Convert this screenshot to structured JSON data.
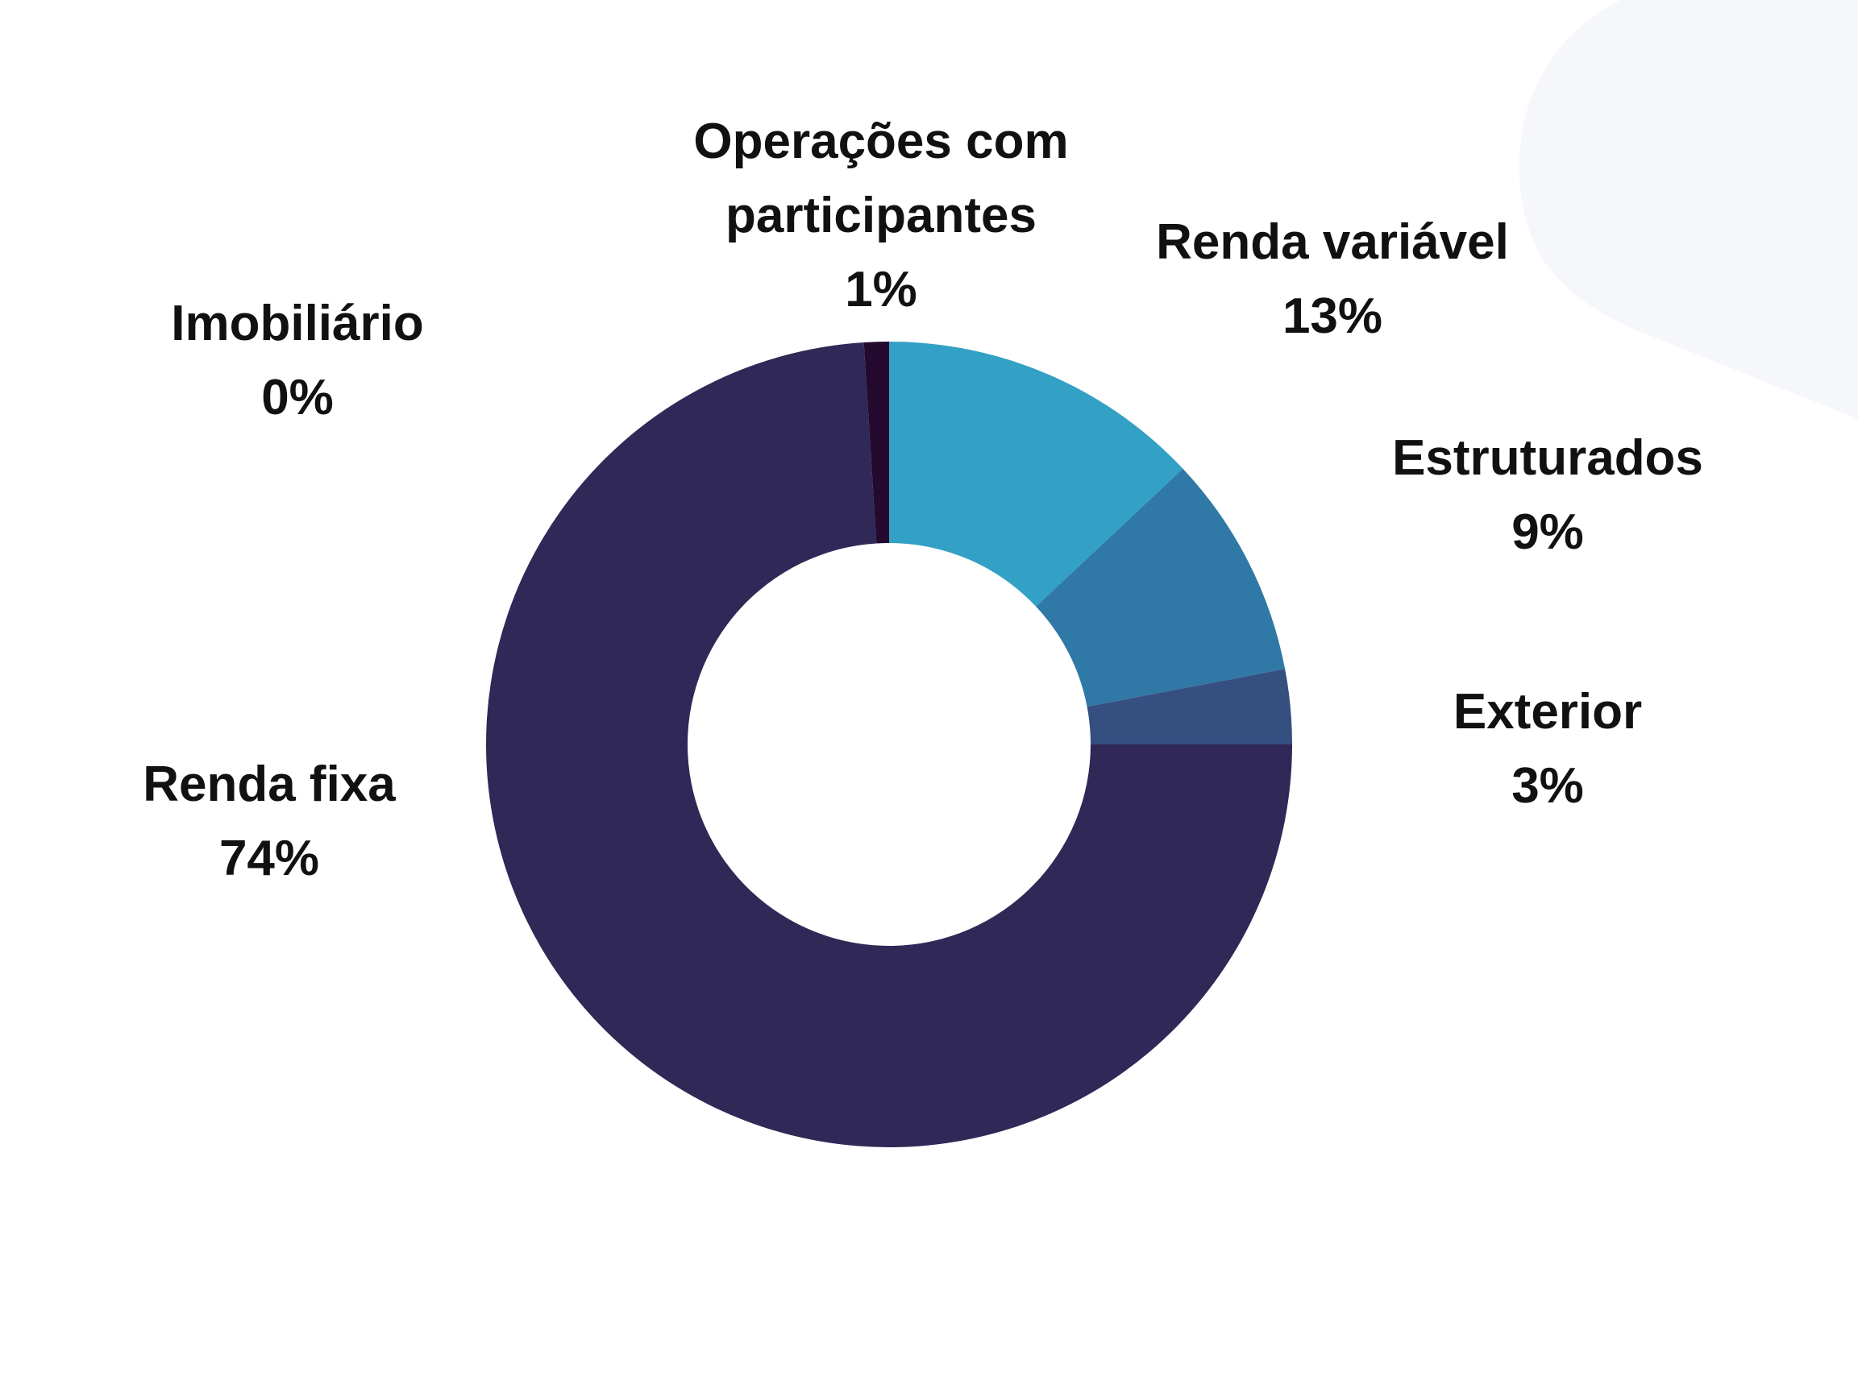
{
  "chart_data": {
    "type": "pie",
    "donut": true,
    "title": "",
    "series": [
      {
        "categories": [
          "Renda variável",
          "Estruturados",
          "Exterior",
          "Renda fixa",
          "Imobiliário",
          "Operações com participantes"
        ],
        "values": [
          13,
          9,
          3,
          74,
          0,
          1
        ],
        "labels": [
          "13%",
          "9%",
          "3%",
          "74%",
          "0%",
          "1%"
        ],
        "colors": [
          "#33a0c5",
          "#3078a6",
          "#354f80",
          "#302857",
          "#3a2a5a",
          "#240a2e"
        ]
      }
    ],
    "legend": "none"
  },
  "labels": [
    {
      "name": "Operações com participantes",
      "lines": [
        "Operações com",
        "participantes"
      ],
      "pct": "1%"
    },
    {
      "name": "Renda variável",
      "lines": [
        "Renda variável"
      ],
      "pct": "13%"
    },
    {
      "name": "Estruturados",
      "lines": [
        "Estruturados"
      ],
      "pct": "9%"
    },
    {
      "name": "Exterior",
      "lines": [
        "Exterior"
      ],
      "pct": "3%"
    },
    {
      "name": "Renda fixa",
      "lines": [
        "Renda fixa"
      ],
      "pct": "74%"
    },
    {
      "name": "Imobiliário",
      "lines": [
        "Imobiliário"
      ],
      "pct": "0%"
    }
  ]
}
